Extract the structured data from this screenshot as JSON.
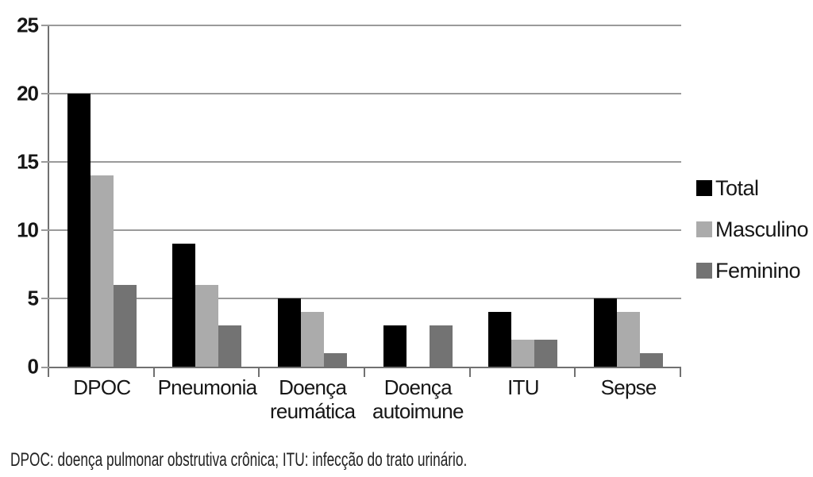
{
  "chart_data": {
    "type": "bar",
    "title": "",
    "xlabel": "",
    "ylabel": "",
    "categories": [
      "DPOC",
      "Pneumonia",
      "Doença reumática",
      "Doença autoimune",
      "ITU",
      "Sepse"
    ],
    "series": [
      {
        "name": "Total",
        "color": "#000000",
        "values": [
          20,
          9,
          5,
          3,
          4,
          5
        ]
      },
      {
        "name": "Masculino",
        "color": "#ababab",
        "values": [
          14,
          6,
          4,
          0,
          2,
          4
        ]
      },
      {
        "name": "Feminino",
        "color": "#737373",
        "values": [
          6,
          3,
          1,
          3,
          2,
          1
        ]
      }
    ],
    "ylim": [
      0,
      25
    ],
    "yticks": [
      0,
      5,
      10,
      15,
      20,
      25
    ],
    "grid": true,
    "legend_position": "right",
    "grid_color": "#9a9a9a",
    "axis_color": "#717171"
  },
  "footnote": "DPOC: doença pulmonar obstrutiva crônica; ITU: infecção do trato urinário."
}
